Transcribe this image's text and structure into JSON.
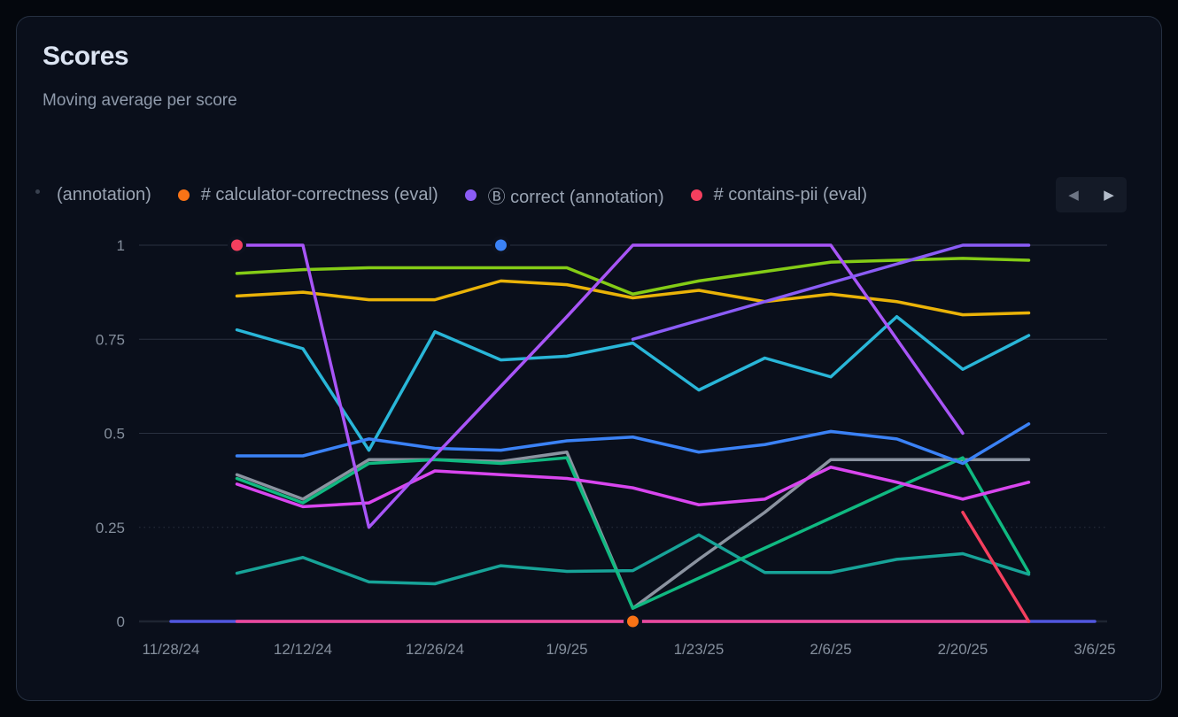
{
  "card": {
    "title": "Scores",
    "subtitle": "Moving average per score"
  },
  "legend": {
    "items": [
      {
        "label": "(annotation)",
        "color": null
      },
      {
        "label": "# calculator-correctness (eval)",
        "color": "#f97316"
      },
      {
        "label": "Ⓑ correct (annotation)",
        "color": "#8b5cf6"
      },
      {
        "label": "# contains-pii (eval)",
        "color": "#f43f5e"
      }
    ],
    "nav": {
      "prev_icon": "◀",
      "next_icon": "▶"
    }
  },
  "chart_data": {
    "type": "line",
    "title": "Scores",
    "subtitle": "Moving average per score",
    "ylabel": "",
    "xlabel": "",
    "ylim": [
      0,
      1
    ],
    "grid": "horizontal",
    "y_ticks": [
      0,
      0.25,
      0.5,
      0.75,
      1
    ],
    "y_tick_labels": [
      "0",
      "0.25",
      "0.5",
      "0.75",
      "1"
    ],
    "x_tick_labels": [
      "11/28/24",
      "12/12/24",
      "12/26/24",
      "1/9/25",
      "1/23/25",
      "2/6/25",
      "2/20/25",
      "3/6/25"
    ],
    "x_tick_week_index": [
      0,
      2,
      4,
      6,
      8,
      10,
      12,
      14
    ],
    "week_dates": [
      "11/28/24",
      "12/5/24",
      "12/12/24",
      "12/19/24",
      "12/26/24",
      "1/2/25",
      "1/9/25",
      "1/16/25",
      "1/23/25",
      "1/30/25",
      "2/6/25",
      "2/13/25",
      "2/20/25",
      "2/27/25",
      "3/6/25"
    ],
    "series": [
      {
        "name": "series-gray",
        "color": "#8b93a0",
        "start_week": 1,
        "values": [
          0.39,
          0.325,
          0.43,
          0.43,
          0.425,
          0.45,
          0.035,
          0.165,
          0.29,
          0.43,
          0.43,
          0.43,
          0.43
        ]
      },
      {
        "name": "series-teal",
        "color": "#17a398",
        "start_week": 1,
        "values": [
          0.128,
          0.17,
          0.105,
          0.1,
          0.148,
          0.133,
          0.135,
          0.23,
          0.13,
          0.13,
          0.165,
          0.18,
          0.125
        ]
      },
      {
        "name": "series-emerald",
        "color": "#10b981",
        "start_week": 1,
        "values": [
          0.38,
          0.315,
          0.42,
          0.43,
          0.42,
          0.435,
          0.035,
          0.115,
          0.195,
          0.275,
          0.355,
          0.435,
          0.13
        ]
      },
      {
        "name": "series-magenta",
        "color": "#d946ef",
        "start_week": 1,
        "values": [
          0.365,
          0.305,
          0.315,
          0.4,
          0.39,
          0.38,
          0.355,
          0.31,
          0.325,
          0.41,
          0.37,
          0.325,
          0.37
        ]
      },
      {
        "name": "series-lime",
        "color": "#84cc16",
        "start_week": 1,
        "values": [
          0.925,
          0.935,
          0.94,
          0.94,
          0.94,
          0.94,
          0.87,
          0.905,
          0.93,
          0.955,
          0.96,
          0.965,
          0.96
        ]
      },
      {
        "name": "series-yellow",
        "color": "#eab308",
        "start_week": 1,
        "values": [
          0.865,
          0.875,
          0.855,
          0.855,
          0.905,
          0.895,
          0.86,
          0.88,
          0.85,
          0.87,
          0.85,
          0.815,
          0.82
        ]
      },
      {
        "name": "series-cyan",
        "color": "#29b6d8",
        "start_week": 1,
        "values": [
          0.775,
          0.725,
          0.455,
          0.77,
          0.695,
          0.705,
          0.74,
          0.615,
          0.7,
          0.65,
          0.81,
          0.67,
          0.76
        ]
      },
      {
        "name": "series-blue",
        "color": "#3b82f6",
        "start_week": 1,
        "values": [
          0.44,
          0.44,
          0.485,
          0.46,
          0.455,
          0.48,
          0.49,
          0.45,
          0.47,
          0.505,
          0.485,
          0.42,
          0.525
        ]
      },
      {
        "name": "series-purple",
        "color": "#a855f7",
        "start_week": 1,
        "values": [
          1,
          1,
          0.25,
          0.44,
          0.625,
          0.81,
          1,
          1,
          1,
          1,
          0.75,
          0.5
        ]
      },
      {
        "name": "series-violet",
        "color": "#8b5cf6",
        "start_week": 7,
        "values": [
          0.75,
          0.8,
          0.85,
          0.9,
          0.95,
          1,
          1
        ]
      },
      {
        "name": "series-indigo",
        "color": "#5157e0",
        "start_week": 0,
        "values": [
          0,
          0,
          0,
          0,
          0,
          0,
          0,
          0,
          0,
          0,
          0,
          0,
          0,
          0,
          0
        ]
      },
      {
        "name": "series-pink",
        "color": "#ec4899",
        "start_week": 1,
        "values": [
          0,
          0,
          0,
          0,
          0,
          0,
          0,
          0,
          0,
          0,
          0,
          0,
          0
        ]
      },
      {
        "name": "series-red",
        "color": "#f43f5e",
        "start_week": 12,
        "values": [
          0.29,
          0
        ]
      }
    ],
    "markers": [
      {
        "name": "marker-red-dot",
        "color": "#f43f5e",
        "week": 1,
        "value": 1.0
      },
      {
        "name": "marker-blue-dot",
        "color": "#3b82f6",
        "week": 5,
        "value": 1.0
      },
      {
        "name": "marker-orange-dot",
        "color": "#f97316",
        "week": 7,
        "value": 0.0
      }
    ]
  }
}
